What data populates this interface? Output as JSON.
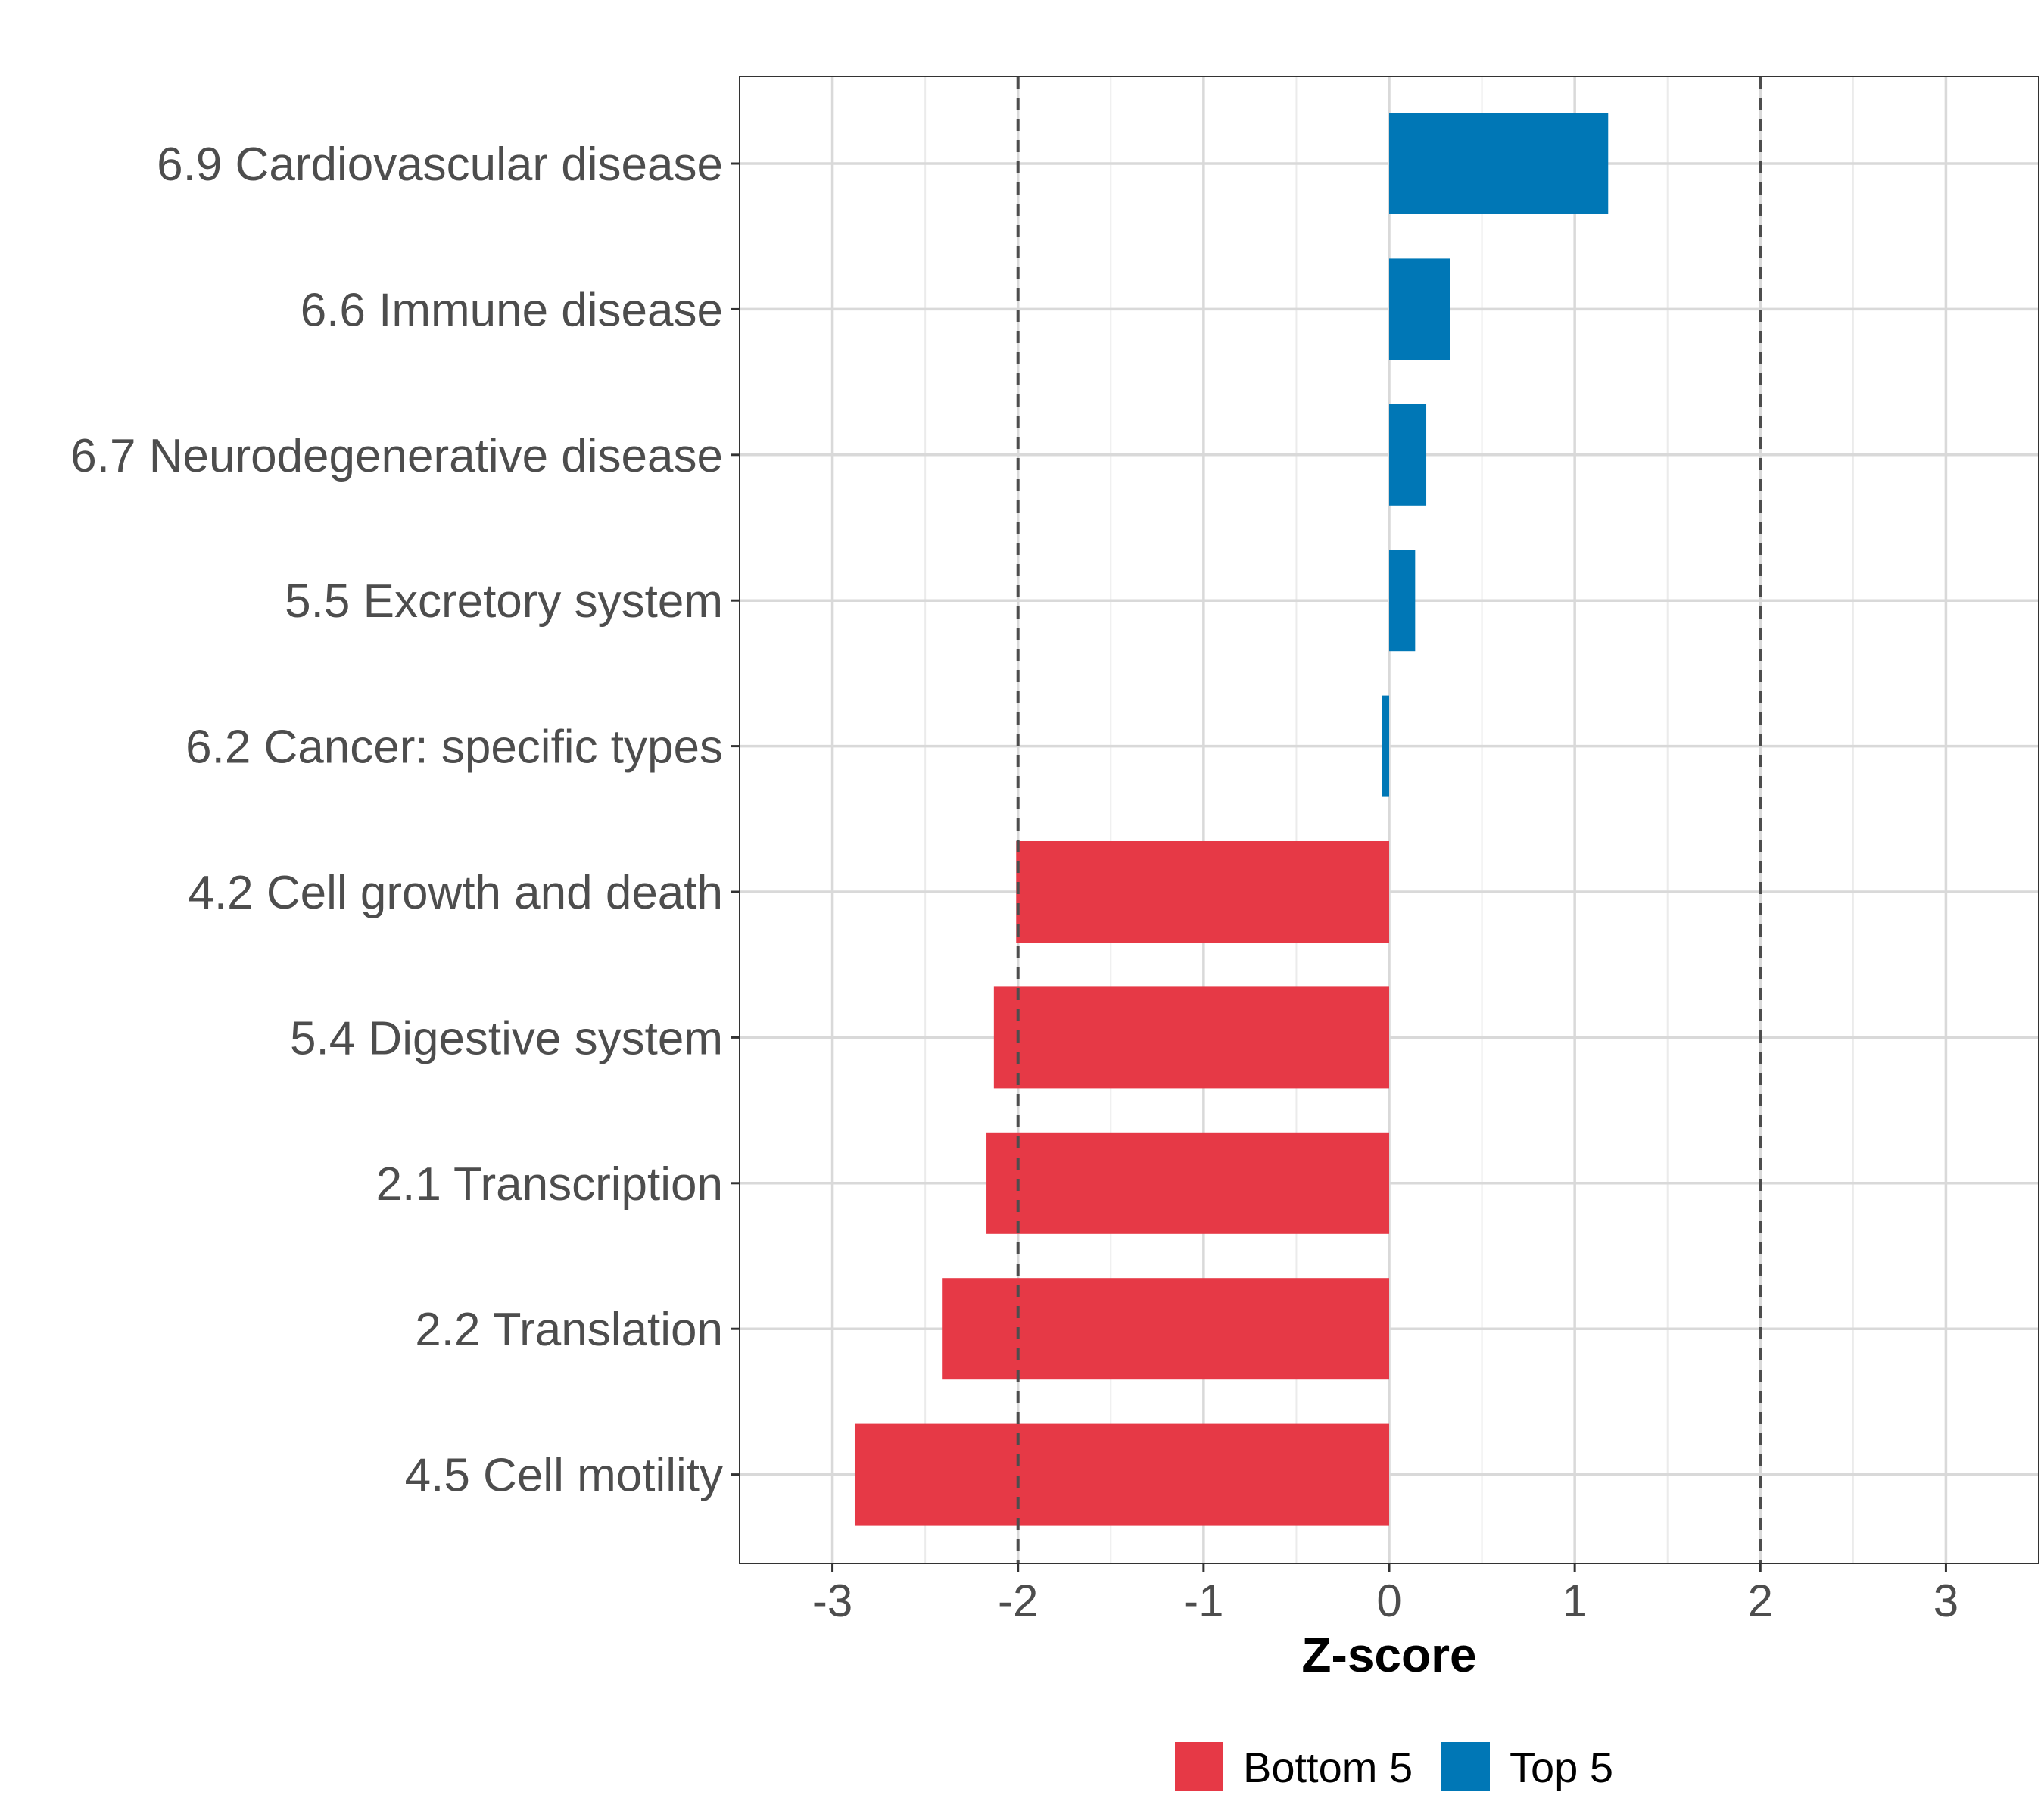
{
  "chart_data": {
    "type": "bar",
    "orientation": "horizontal",
    "title": "",
    "xlabel": "Z-score",
    "ylabel": "",
    "xlim": [
      -3.5,
      3.5
    ],
    "x_ticks": [
      -3,
      -2,
      -1,
      0,
      1,
      2,
      3
    ],
    "x_tick_labels": [
      "-3",
      "-2",
      "-1",
      "0",
      "1",
      "2",
      "3"
    ],
    "reference_lines": [
      -2,
      2
    ],
    "grid": true,
    "legend_position": "bottom",
    "categories": [
      "6.9 Cardiovascular disease",
      "6.6 Immune disease",
      "6.7 Neurodegenerative disease",
      "5.5 Excretory system",
      "6.2 Cancer: specific types",
      "4.2 Cell growth and death",
      "5.4 Digestive system",
      "2.1 Transcription",
      "2.2 Translation",
      "4.5 Cell motility"
    ],
    "values": [
      1.18,
      0.33,
      0.2,
      0.14,
      -0.04,
      -2.01,
      -2.13,
      -2.17,
      -2.41,
      -2.88
    ],
    "groups": [
      "Top 5",
      "Top 5",
      "Top 5",
      "Top 5",
      "Top 5",
      "Bottom 5",
      "Bottom 5",
      "Bottom 5",
      "Bottom 5",
      "Bottom 5"
    ],
    "legend": [
      {
        "name": "Bottom 5",
        "color": "#e63946"
      },
      {
        "name": "Top 5",
        "color": "#0077b6"
      }
    ]
  }
}
